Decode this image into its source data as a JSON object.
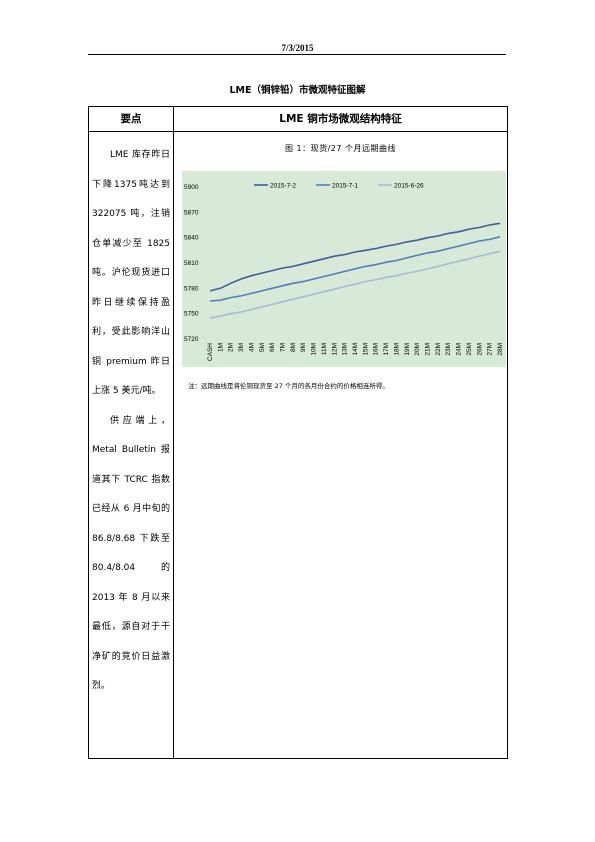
{
  "page": {
    "date": "7/3/2015",
    "title": "LME（铜锌铅）市微观特征图解"
  },
  "table": {
    "header_left": "要点",
    "header_right": "LME 铜市场微观结构特征",
    "paragraphs": [
      "LME 库存昨日下降1375吨达到 322075 吨，注销仓单减少至 1825 吨。沪伦现货进口昨日继续保持盈利，受此影响洋山铜 premium 昨日上涨 5 美元/吨。",
      "供应端上，Metal Bulletin 报道其下 TCRC 指数已经从 6 月中旬的 86.8/8.68 下跌至 80.4/8.04 的 2013 年 8 月以来最低，源自对于干净矿的竞价日益激烈。"
    ]
  },
  "figure": {
    "caption": "图 1：现货/27 个月远期曲线",
    "note": "注：远期曲线是将伦铜现货至 27 个月的各月份合约的价格相连所得。"
  },
  "chart_data": {
    "type": "line",
    "title": "",
    "xlabel": "",
    "ylabel": "",
    "categories": [
      "CASH",
      "1M",
      "2M",
      "3M",
      "4M",
      "5M",
      "6M",
      "7M",
      "8M",
      "9M",
      "10M",
      "11M",
      "12M",
      "13M",
      "14M",
      "15M",
      "16M",
      "17M",
      "18M",
      "19M",
      "20M",
      "21M",
      "22M",
      "23M",
      "24M",
      "25M",
      "26M",
      "27M",
      "28M"
    ],
    "ylim": [
      5720,
      5900
    ],
    "yticks": [
      5720,
      5750,
      5780,
      5810,
      5840,
      5870,
      5900
    ],
    "grid": false,
    "legend_position": "top",
    "series": [
      {
        "name": "2015-7-2",
        "color": "#3e5fa0",
        "values": [
          5777,
          5780,
          5786,
          5791,
          5795,
          5798,
          5801,
          5804,
          5806,
          5809,
          5812,
          5815,
          5818,
          5820,
          5823,
          5825,
          5827,
          5830,
          5832,
          5835,
          5837,
          5840,
          5842,
          5845,
          5847,
          5850,
          5852,
          5855,
          5857
        ]
      },
      {
        "name": "2015-7-1",
        "color": "#4f7ec4",
        "values": [
          5765,
          5766,
          5769,
          5771,
          5774,
          5777,
          5780,
          5783,
          5786,
          5788,
          5791,
          5794,
          5797,
          5800,
          5803,
          5806,
          5808,
          5811,
          5813,
          5816,
          5819,
          5822,
          5824,
          5827,
          5830,
          5833,
          5836,
          5838,
          5841
        ]
      },
      {
        "name": "2015-6-26",
        "color": "#a7b9dd",
        "values": [
          5745,
          5747,
          5750,
          5752,
          5755,
          5758,
          5761,
          5764,
          5767,
          5770,
          5773,
          5776,
          5779,
          5782,
          5785,
          5788,
          5790,
          5793,
          5795,
          5798,
          5800,
          5803,
          5806,
          5809,
          5812,
          5815,
          5818,
          5821,
          5824
        ]
      }
    ]
  }
}
